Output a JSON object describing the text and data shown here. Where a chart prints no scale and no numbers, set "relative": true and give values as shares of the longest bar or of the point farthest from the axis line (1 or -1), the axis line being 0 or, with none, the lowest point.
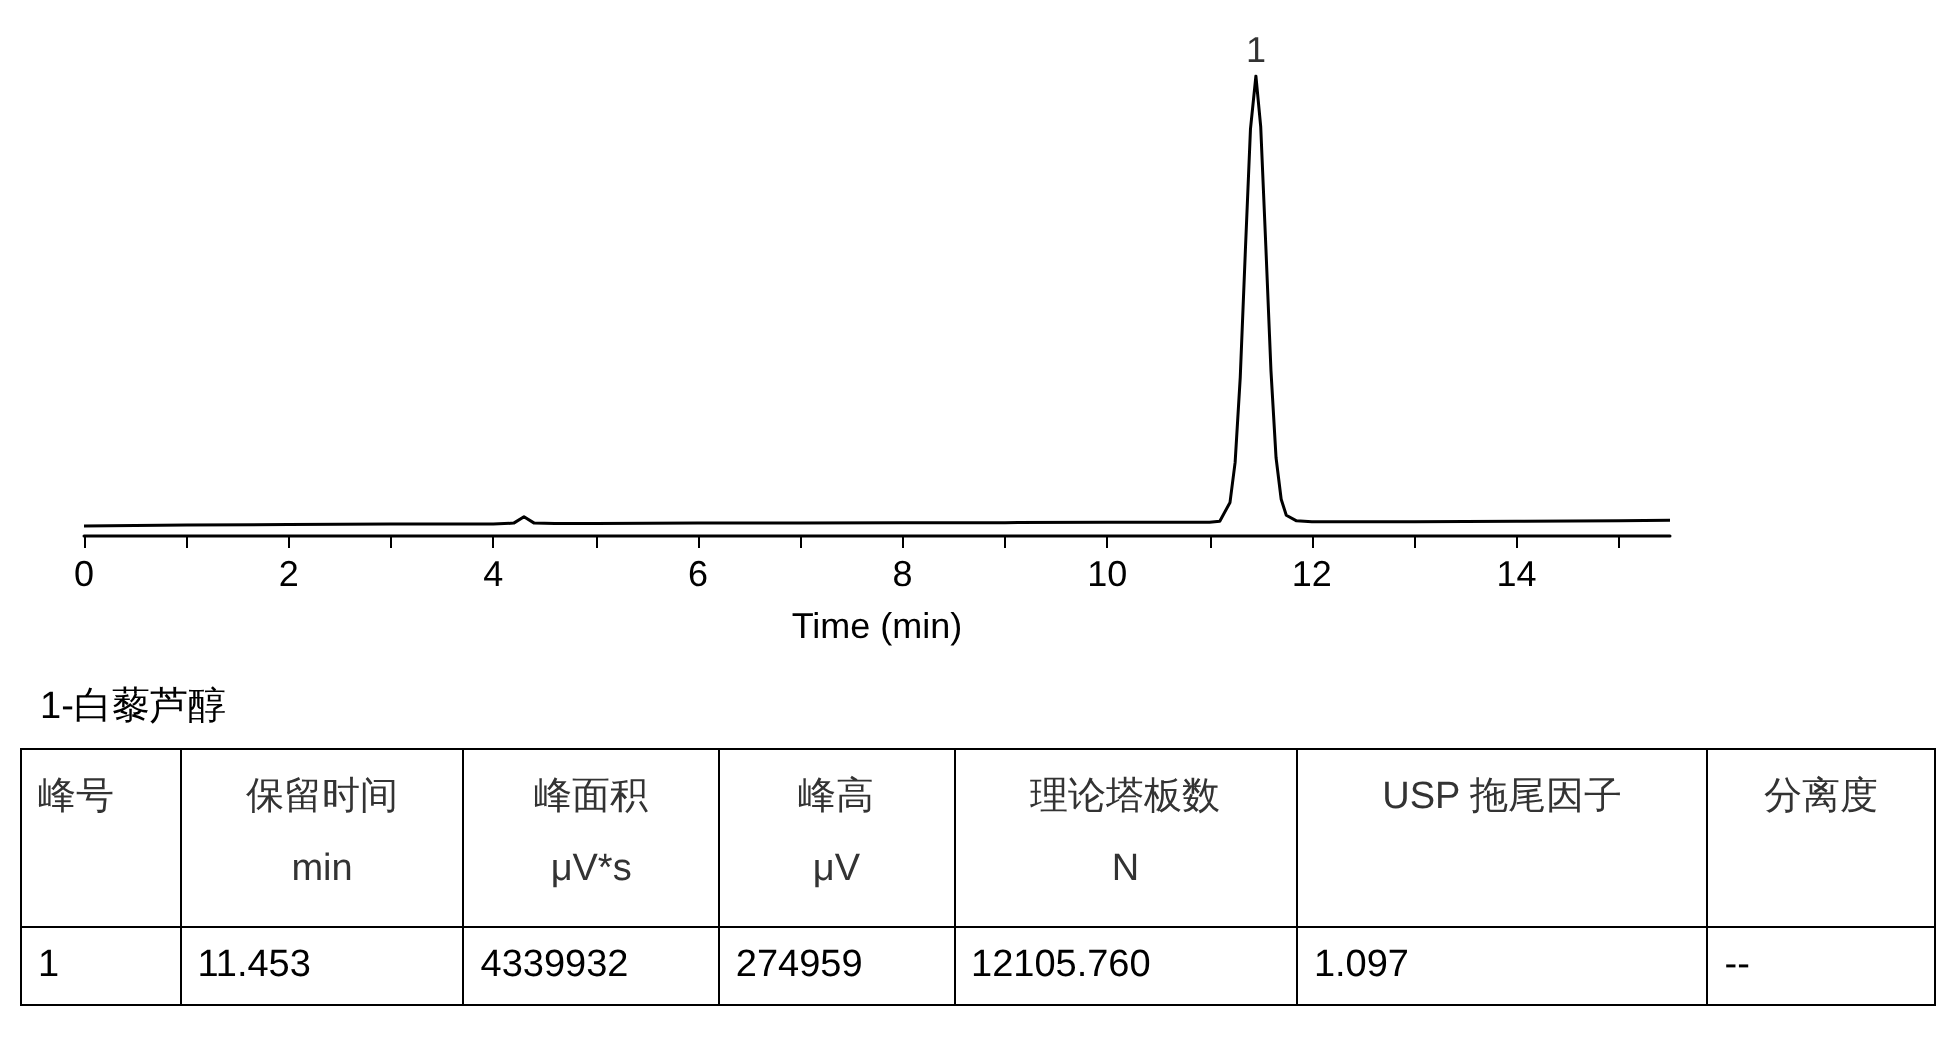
{
  "chart_data": {
    "type": "line",
    "relative": true,
    "xlabel": "Time (min)",
    "marker": "none",
    "line_style": "solid",
    "grid": false,
    "xlim": [
      0,
      15.5
    ],
    "xticks": [
      0,
      {
        "value": 1,
        "label": null
      },
      2,
      {
        "value": 3,
        "label": null
      },
      4,
      {
        "value": 5,
        "label": null
      },
      6,
      {
        "value": 7,
        "label": null
      },
      8,
      {
        "value": 9,
        "label": null
      },
      10,
      {
        "value": 11,
        "label": null
      },
      12,
      {
        "value": 13,
        "label": null
      },
      14,
      {
        "value": 15,
        "label": null
      }
    ],
    "series": [
      {
        "color": "#000000",
        "x": [
          0,
          1,
          2,
          3,
          4,
          4.2,
          4.3,
          4.4,
          4.6,
          5,
          6,
          7,
          8,
          9,
          10,
          10.5,
          11,
          11.1,
          11.2,
          11.25,
          11.3,
          11.35,
          11.4,
          11.453,
          11.5,
          11.55,
          11.6,
          11.65,
          11.7,
          11.75,
          11.85,
          12,
          12.5,
          13,
          14,
          15,
          15.5
        ],
        "values": [
          0.022,
          0.024,
          0.025,
          0.026,
          0.026,
          0.028,
          0.042,
          0.028,
          0.027,
          0.027,
          0.028,
          0.028,
          0.029,
          0.029,
          0.03,
          0.03,
          0.03,
          0.032,
          0.073,
          0.16,
          0.345,
          0.62,
          0.885,
          1,
          0.89,
          0.63,
          0.36,
          0.17,
          0.08,
          0.045,
          0.033,
          0.031,
          0.031,
          0.031,
          0.032,
          0.033,
          0.034
        ]
      }
    ],
    "annotations": [
      {
        "text": "1",
        "x": 11.453,
        "y": 1
      },
      "1-白藜芦醇",
      "峰号",
      "保留时间\nmin",
      "峰面积\nμV*s",
      "峰高\nμV",
      "理论塔板数\nN",
      "USP 拖尾因子",
      "分离度",
      "1",
      "11.453",
      "4339932",
      "274959",
      "12105.760",
      "1.097",
      "--"
    ]
  }
}
